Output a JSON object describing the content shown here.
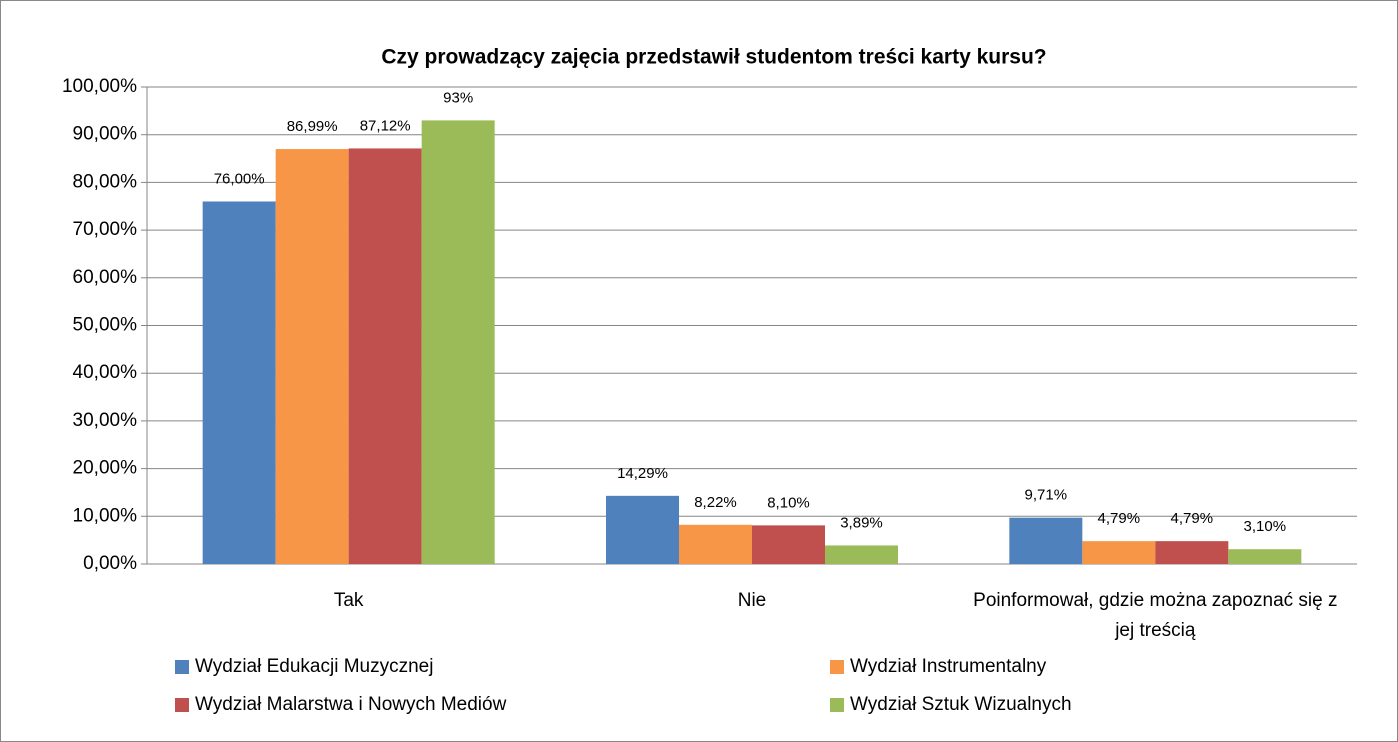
{
  "chart_data": {
    "type": "bar",
    "title": "Czy prowadzący zajęcia przedstawił studentom treści karty kursu?",
    "categories": [
      "Tak",
      "Nie",
      "Poinformował, gdzie można zapoznać się z jej treścią"
    ],
    "series": [
      {
        "name": "Wydział Edukacji Muzycznej",
        "color": "#4f81bd",
        "values": [
          76.0,
          14.29,
          9.71
        ],
        "value_labels": [
          "76,00%",
          "14,29%",
          "9,71%"
        ]
      },
      {
        "name": "Wydział Instrumentalny",
        "color": "#f79646",
        "values": [
          86.99,
          8.22,
          4.79
        ],
        "value_labels": [
          "86,99%",
          "8,22%",
          "4,79%"
        ]
      },
      {
        "name": "Wydział Malarstwa i Nowych Mediów",
        "color": "#c0504d",
        "values": [
          87.12,
          8.1,
          4.79
        ],
        "value_labels": [
          "87,12%",
          "8,10%",
          "4,79%"
        ]
      },
      {
        "name": "Wydział Sztuk Wizualnych",
        "color": "#9bbb59",
        "values": [
          93,
          3.89,
          3.1
        ],
        "value_labels": [
          "93%",
          "3,89%",
          "3,10%"
        ]
      }
    ],
    "ylim": [
      0,
      100
    ],
    "yticks": [
      {
        "value": 0,
        "label": "0,00%"
      },
      {
        "value": 10,
        "label": "10,00%"
      },
      {
        "value": 20,
        "label": "20,00%"
      },
      {
        "value": 30,
        "label": "30,00%"
      },
      {
        "value": 40,
        "label": "40,00%"
      },
      {
        "value": 50,
        "label": "50,00%"
      },
      {
        "value": 60,
        "label": "60,00%"
      },
      {
        "value": 70,
        "label": "70,00%"
      },
      {
        "value": 80,
        "label": "80,00%"
      },
      {
        "value": 90,
        "label": "90,00%"
      },
      {
        "value": 100,
        "label": "100,00%"
      }
    ],
    "grid": true,
    "legend": "bottom"
  }
}
